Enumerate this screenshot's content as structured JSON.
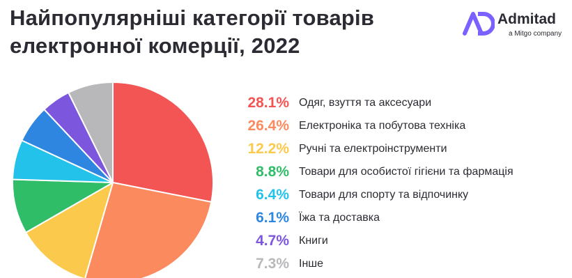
{
  "title": {
    "line1": "Найпопулярніші категорії товарів",
    "line2": "електронної комерції, 2022"
  },
  "brand": {
    "name": "Admitad",
    "tagline": "a Mitgo company",
    "logo_icon": "admitad-ad-logo",
    "color": "#7b61ff"
  },
  "chart_data": {
    "type": "pie",
    "title": "Найпопулярніші категорії товарів електронної комерції, 2022",
    "start": "12 o'clock",
    "direction": "clockwise",
    "slices": [
      {
        "label": "Одяг, взуття та аксесуари",
        "value": 28.1,
        "display": "28.1%",
        "color": "#f35454"
      },
      {
        "label": "Електроніка та побутова техніка",
        "value": 26.4,
        "display": "26.4%",
        "color": "#fb8b5e"
      },
      {
        "label": "Ручні та електроінструменти",
        "value": 12.2,
        "display": "12.2%",
        "color": "#fbc94b"
      },
      {
        "label": "Товари для особистої гігієни та фармація",
        "value": 8.8,
        "display": "8.8%",
        "color": "#2fbd67"
      },
      {
        "label": "Товари для спорту та відпочинку",
        "value": 6.4,
        "display": "6.4%",
        "color": "#22c2ea"
      },
      {
        "label": "Їжа та доставка",
        "value": 6.1,
        "display": "6.1%",
        "color": "#2f86e0"
      },
      {
        "label": "Книги",
        "value": 4.7,
        "display": "4.7%",
        "color": "#7c57de"
      },
      {
        "label": "Інше",
        "value": 7.3,
        "display": "7.3%",
        "color": "#b8b8bb"
      }
    ]
  }
}
